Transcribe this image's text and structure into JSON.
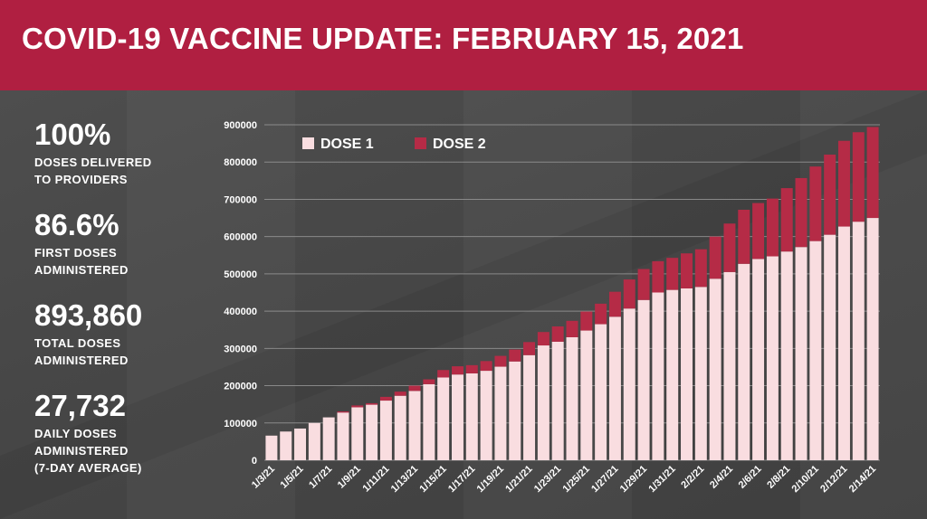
{
  "header": {
    "title": "COVID-19 VACCINE UPDATE: FEBRUARY 15, 2021"
  },
  "stats": [
    {
      "value": "100%",
      "label": "DOSES DELIVERED\nTO PROVIDERS"
    },
    {
      "value": "86.6%",
      "label": "FIRST DOSES\nADMINISTERED"
    },
    {
      "value": "893,860",
      "label": "TOTAL DOSES\nADMINISTERED"
    },
    {
      "value": "27,732",
      "label": "DAILY DOSES\nADMINISTERED\n(7-DAY AVERAGE)"
    }
  ],
  "colors": {
    "header": "#b01f41",
    "dose1": "#f9dde0",
    "dose2": "#b52b46",
    "background": "#4a4a4a"
  },
  "chart_data": {
    "type": "bar",
    "stacked": true,
    "legend_position": "top-left",
    "grid": true,
    "ylim": [
      0,
      900000
    ],
    "yticks": [
      0,
      100000,
      200000,
      300000,
      400000,
      500000,
      600000,
      700000,
      800000,
      900000
    ],
    "categories": [
      "1/3/21",
      "1/4/21",
      "1/5/21",
      "1/6/21",
      "1/7/21",
      "1/8/21",
      "1/9/21",
      "1/10/21",
      "1/11/21",
      "1/12/21",
      "1/13/21",
      "1/14/21",
      "1/15/21",
      "1/16/21",
      "1/17/21",
      "1/18/21",
      "1/19/21",
      "1/20/21",
      "1/21/21",
      "1/22/21",
      "1/23/21",
      "1/24/21",
      "1/25/21",
      "1/26/21",
      "1/27/21",
      "1/28/21",
      "1/29/21",
      "1/30/21",
      "1/31/21",
      "2/1/21",
      "2/2/21",
      "2/3/21",
      "2/4/21",
      "2/5/21",
      "2/6/21",
      "2/7/21",
      "2/8/21",
      "2/9/21",
      "2/10/21",
      "2/11/21",
      "2/12/21",
      "2/13/21",
      "2/14/21"
    ],
    "tick_labels": [
      "1/3/21",
      "",
      "1/5/21",
      "",
      "1/7/21",
      "",
      "1/9/21",
      "",
      "1/11/21",
      "",
      "1/13/21",
      "",
      "1/15/21",
      "",
      "1/17/21",
      "",
      "1/19/21",
      "",
      "1/21/21",
      "",
      "1/23/21",
      "",
      "1/25/21",
      "",
      "1/27/21",
      "",
      "1/29/21",
      "",
      "1/31/21",
      "",
      "2/2/21",
      "",
      "2/4/21",
      "",
      "2/6/21",
      "",
      "2/8/21",
      "",
      "2/10/21",
      "",
      "2/12/21",
      "",
      "2/14/21"
    ],
    "series": [
      {
        "name": "DOSE 1",
        "values": [
          66000,
          77000,
          85000,
          100000,
          115000,
          128000,
          142000,
          149000,
          160000,
          173000,
          186000,
          204000,
          222000,
          230000,
          233000,
          240000,
          251000,
          265000,
          282000,
          308000,
          318000,
          330000,
          348000,
          365000,
          385000,
          407000,
          430000,
          450000,
          457000,
          461000,
          465000,
          487000,
          505000,
          527000,
          540000,
          547000,
          560000,
          572000,
          588000,
          605000,
          627000,
          640000,
          650000
        ]
      },
      {
        "name": "DOSE 2",
        "values": [
          0,
          0,
          0,
          0,
          0,
          3000,
          5000,
          4000,
          10000,
          11000,
          14000,
          13000,
          20000,
          22000,
          22000,
          26000,
          29000,
          32000,
          35000,
          36000,
          41000,
          44000,
          51000,
          55000,
          67000,
          78000,
          83000,
          84000,
          86000,
          94000,
          101000,
          113000,
          130000,
          145000,
          150000,
          155000,
          170000,
          185000,
          200000,
          215000,
          230000,
          240000,
          244000
        ]
      }
    ]
  }
}
